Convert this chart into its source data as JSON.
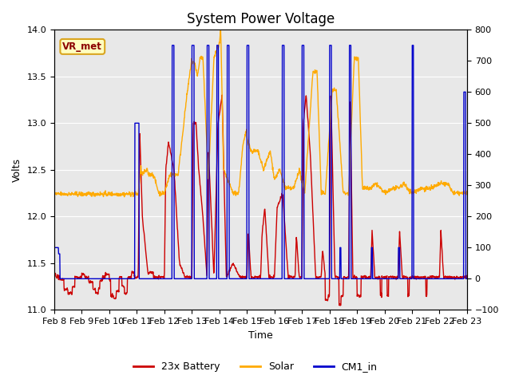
{
  "title": "System Power Voltage",
  "ylabel_left": "Volts",
  "xlabel": "Time",
  "ylim_left": [
    11.0,
    14.0
  ],
  "ylim_right": [
    -100,
    800
  ],
  "yticks_left": [
    11.0,
    11.5,
    12.0,
    12.5,
    13.0,
    13.5,
    14.0
  ],
  "yticks_right": [
    -100,
    0,
    100,
    200,
    300,
    400,
    500,
    600,
    700,
    800
  ],
  "x_tick_labels": [
    "Feb 8",
    "Feb 9",
    "Feb 10",
    "Feb 11",
    "Feb 12",
    "Feb 13",
    "Feb 14",
    "Feb 15",
    "Feb 16",
    "Feb 17",
    "Feb 18",
    "Feb 19",
    "Feb 20",
    "Feb 21",
    "Feb 22",
    "Feb 23"
  ],
  "legend_labels": [
    "23x Battery",
    "Solar",
    "CM1_in"
  ],
  "legend_colors": [
    "#cc0000",
    "#ffaa00",
    "#0000cc"
  ],
  "vr_met_label": "VR_met",
  "bg_color": "#e8e8e8",
  "inner_bg_color": "#d8d8d8",
  "title_fontsize": 12,
  "axis_fontsize": 9,
  "tick_fontsize": 8,
  "line_width": 1.0
}
